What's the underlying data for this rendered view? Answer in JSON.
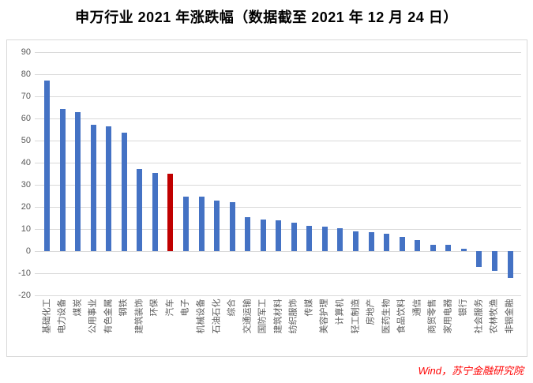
{
  "title": "申万行业 2021 年涨跌幅（数据截至 2021 年 12 月 24 日）",
  "source_note": "Wind，苏宁金融研究院",
  "colors": {
    "bar": "#4472C4",
    "highlight_bar": "#C00000",
    "gridline": "#D9D9D9",
    "axis_text": "#595959",
    "title_text": "#000000",
    "source_text": "#FF0000",
    "frame_border": "#D9D9D9"
  },
  "chart_data": {
    "type": "bar",
    "title": "申万行业 2021 年涨跌幅（数据截至 2021 年 12 月 24 日）",
    "source": "Wind，苏宁金融研究院",
    "xlabel": "",
    "ylabel": "",
    "ylim": [
      -20,
      90
    ],
    "yticks": [
      90,
      80,
      70,
      60,
      50,
      40,
      30,
      20,
      10,
      0,
      -10,
      -20
    ],
    "grid": true,
    "legend": false,
    "highlight_index": 8,
    "highlight_category": "汽车",
    "categories": [
      "基础化工",
      "电力设备",
      "煤炭",
      "公用事业",
      "有色金属",
      "钢铁",
      "建筑装饰",
      "环保",
      "汽车",
      "电子",
      "机械设备",
      "石油石化",
      "综合",
      "交通运输",
      "国防军工",
      "建筑材料",
      "纺织服饰",
      "传媒",
      "美容护理",
      "计算机",
      "轻工制造",
      "房地产",
      "医药生物",
      "食品饮料",
      "通信",
      "商贸零售",
      "家用电器",
      "银行",
      "社会服务",
      "农林牧渔",
      "非银金融"
    ],
    "values": [
      77.0,
      64.4,
      62.9,
      57.2,
      56.6,
      53.7,
      37.2,
      35.6,
      35.1,
      24.7,
      24.6,
      22.8,
      22.2,
      15.4,
      14.3,
      14.0,
      12.9,
      11.6,
      11.2,
      10.3,
      8.9,
      8.8,
      7.9,
      6.4,
      5.1,
      3.0,
      2.9,
      1.2,
      -7.1,
      -8.7,
      -11.9
    ]
  }
}
